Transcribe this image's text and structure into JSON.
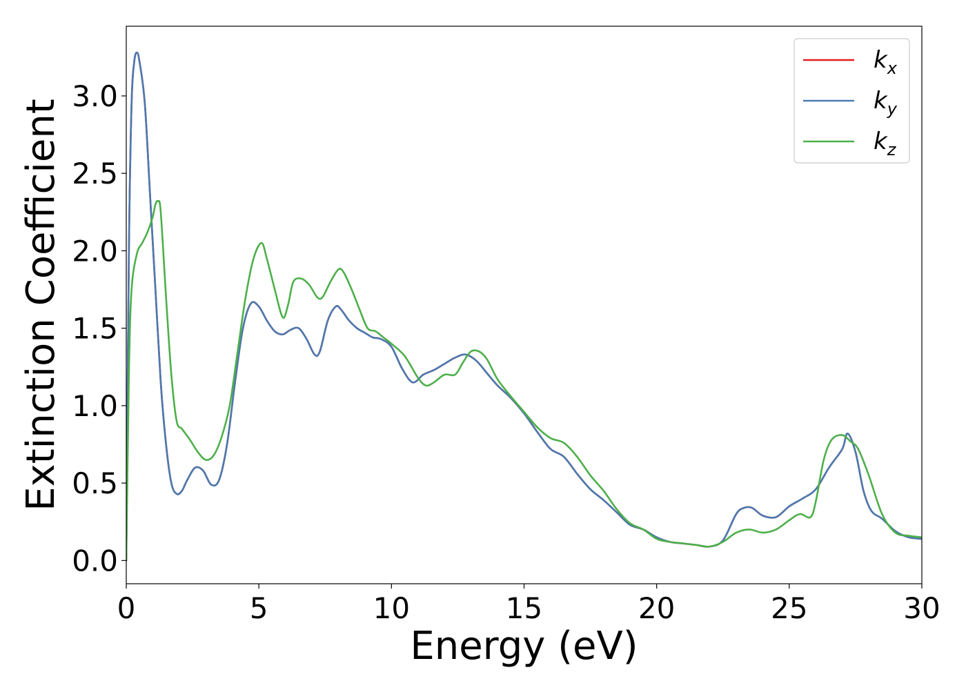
{
  "chart_data": {
    "type": "line",
    "title": "",
    "xlabel": "Energy (eV)",
    "ylabel": "Extinction Coefficient",
    "xlim": [
      0,
      30
    ],
    "ylim": [
      -0.15,
      3.45
    ],
    "xticks": [
      0,
      5,
      10,
      15,
      20,
      25,
      30
    ],
    "xtick_labels": [
      "0",
      "5",
      "10",
      "15",
      "20",
      "25",
      "30"
    ],
    "yticks": [
      0.0,
      0.5,
      1.0,
      1.5,
      2.0,
      2.5,
      3.0
    ],
    "ytick_labels": [
      "0.0",
      "0.5",
      "1.0",
      "1.5",
      "2.0",
      "2.5",
      "3.0"
    ],
    "grid": false,
    "legend_position": "top-right",
    "series": [
      {
        "name": "k",
        "subscript": "x",
        "color": "#e41a1c",
        "x": [
          0,
          0.1,
          0.2,
          0.3,
          0.4,
          0.5,
          0.7,
          0.9,
          1.1,
          1.3,
          1.5,
          1.7,
          1.9,
          2.1,
          2.3,
          2.6,
          2.9,
          3.2,
          3.5,
          3.8,
          4.1,
          4.4,
          4.7,
          5.0,
          5.3,
          5.6,
          5.9,
          6.2,
          6.5,
          6.8,
          7.1,
          7.3,
          7.6,
          7.9,
          8.1,
          8.4,
          8.7,
          9.0,
          9.3,
          9.6,
          10.0,
          10.4,
          10.8,
          11.2,
          11.6,
          12.0,
          12.4,
          12.8,
          13.2,
          13.6,
          14.0,
          14.5,
          15.0,
          15.5,
          16.0,
          16.5,
          17.0,
          17.5,
          18.0,
          18.5,
          19.0,
          19.5,
          20.0,
          20.5,
          21.0,
          21.5,
          22.0,
          22.5,
          23.0,
          23.3,
          23.6,
          24.0,
          24.5,
          25.0,
          25.5,
          26.0,
          26.5,
          27.0,
          27.2,
          27.5,
          27.8,
          28.1,
          28.5,
          29.0,
          29.5,
          30.0
        ],
        "y": [
          0.0,
          2.0,
          2.95,
          3.22,
          3.28,
          3.22,
          2.95,
          2.35,
          1.75,
          1.15,
          0.75,
          0.5,
          0.43,
          0.45,
          0.52,
          0.6,
          0.58,
          0.49,
          0.52,
          0.75,
          1.15,
          1.5,
          1.66,
          1.64,
          1.55,
          1.48,
          1.46,
          1.49,
          1.5,
          1.43,
          1.33,
          1.35,
          1.55,
          1.64,
          1.62,
          1.55,
          1.5,
          1.47,
          1.44,
          1.43,
          1.38,
          1.24,
          1.15,
          1.2,
          1.23,
          1.27,
          1.31,
          1.33,
          1.29,
          1.21,
          1.13,
          1.05,
          0.95,
          0.83,
          0.72,
          0.67,
          0.56,
          0.46,
          0.39,
          0.31,
          0.23,
          0.2,
          0.15,
          0.12,
          0.11,
          0.1,
          0.09,
          0.13,
          0.3,
          0.34,
          0.34,
          0.29,
          0.28,
          0.35,
          0.4,
          0.46,
          0.6,
          0.72,
          0.82,
          0.7,
          0.45,
          0.32,
          0.27,
          0.19,
          0.15,
          0.14
        ]
      },
      {
        "name": "k",
        "subscript": "y",
        "color": "#4a7ab0",
        "x": [
          0,
          0.1,
          0.2,
          0.3,
          0.4,
          0.5,
          0.7,
          0.9,
          1.1,
          1.3,
          1.5,
          1.7,
          1.9,
          2.1,
          2.3,
          2.6,
          2.9,
          3.2,
          3.5,
          3.8,
          4.1,
          4.4,
          4.7,
          5.0,
          5.3,
          5.6,
          5.9,
          6.2,
          6.5,
          6.8,
          7.1,
          7.3,
          7.6,
          7.9,
          8.1,
          8.4,
          8.7,
          9.0,
          9.3,
          9.6,
          10.0,
          10.4,
          10.8,
          11.2,
          11.6,
          12.0,
          12.4,
          12.8,
          13.2,
          13.6,
          14.0,
          14.5,
          15.0,
          15.5,
          16.0,
          16.5,
          17.0,
          17.5,
          18.0,
          18.5,
          19.0,
          19.5,
          20.0,
          20.5,
          21.0,
          21.5,
          22.0,
          22.5,
          23.0,
          23.3,
          23.6,
          24.0,
          24.5,
          25.0,
          25.5,
          26.0,
          26.5,
          27.0,
          27.2,
          27.5,
          27.8,
          28.1,
          28.5,
          29.0,
          29.5,
          30.0
        ],
        "y": [
          0.0,
          2.0,
          2.95,
          3.22,
          3.28,
          3.22,
          2.95,
          2.35,
          1.75,
          1.15,
          0.75,
          0.5,
          0.43,
          0.45,
          0.52,
          0.6,
          0.58,
          0.49,
          0.52,
          0.75,
          1.15,
          1.5,
          1.66,
          1.64,
          1.55,
          1.48,
          1.46,
          1.49,
          1.5,
          1.43,
          1.33,
          1.35,
          1.55,
          1.64,
          1.62,
          1.55,
          1.5,
          1.47,
          1.44,
          1.43,
          1.38,
          1.24,
          1.15,
          1.2,
          1.23,
          1.27,
          1.31,
          1.33,
          1.29,
          1.21,
          1.13,
          1.05,
          0.95,
          0.83,
          0.72,
          0.67,
          0.56,
          0.46,
          0.39,
          0.31,
          0.23,
          0.2,
          0.15,
          0.12,
          0.11,
          0.1,
          0.09,
          0.13,
          0.3,
          0.34,
          0.34,
          0.29,
          0.28,
          0.35,
          0.4,
          0.46,
          0.6,
          0.72,
          0.82,
          0.7,
          0.45,
          0.32,
          0.27,
          0.19,
          0.15,
          0.14
        ]
      },
      {
        "name": "k",
        "subscript": "z",
        "color": "#4daf4a",
        "x": [
          0,
          0.1,
          0.2,
          0.4,
          0.6,
          0.8,
          1.0,
          1.1,
          1.2,
          1.3,
          1.5,
          1.7,
          1.9,
          2.1,
          2.4,
          2.7,
          3.0,
          3.3,
          3.6,
          3.9,
          4.2,
          4.5,
          4.8,
          5.1,
          5.3,
          5.6,
          5.9,
          6.1,
          6.3,
          6.6,
          6.9,
          7.2,
          7.4,
          7.7,
          8.0,
          8.2,
          8.5,
          8.8,
          9.1,
          9.4,
          9.7,
          10.0,
          10.5,
          11.0,
          11.3,
          11.6,
          12.0,
          12.4,
          12.7,
          13.0,
          13.3,
          13.6,
          14.0,
          14.5,
          15.0,
          15.5,
          16.0,
          16.5,
          17.0,
          17.5,
          18.0,
          18.5,
          19.0,
          19.5,
          20.0,
          20.5,
          21.0,
          21.5,
          22.0,
          22.5,
          23.0,
          23.5,
          24.0,
          24.5,
          25.0,
          25.4,
          25.8,
          26.0,
          26.3,
          26.6,
          27.0,
          27.3,
          27.6,
          28.0,
          28.5,
          29.0,
          29.5,
          30.0
        ],
        "y": [
          0.0,
          1.2,
          1.75,
          1.98,
          2.05,
          2.12,
          2.22,
          2.3,
          2.32,
          2.25,
          1.7,
          1.2,
          0.9,
          0.85,
          0.78,
          0.7,
          0.65,
          0.68,
          0.8,
          1.0,
          1.35,
          1.7,
          1.95,
          2.05,
          1.95,
          1.75,
          1.57,
          1.65,
          1.8,
          1.82,
          1.78,
          1.7,
          1.7,
          1.8,
          1.88,
          1.86,
          1.75,
          1.62,
          1.5,
          1.48,
          1.44,
          1.4,
          1.32,
          1.18,
          1.13,
          1.15,
          1.2,
          1.2,
          1.28,
          1.35,
          1.35,
          1.3,
          1.17,
          1.06,
          0.96,
          0.86,
          0.79,
          0.76,
          0.67,
          0.55,
          0.45,
          0.33,
          0.24,
          0.2,
          0.14,
          0.12,
          0.11,
          0.1,
          0.09,
          0.12,
          0.18,
          0.2,
          0.18,
          0.2,
          0.26,
          0.3,
          0.28,
          0.38,
          0.65,
          0.78,
          0.81,
          0.77,
          0.72,
          0.55,
          0.3,
          0.18,
          0.16,
          0.15
        ]
      }
    ]
  }
}
